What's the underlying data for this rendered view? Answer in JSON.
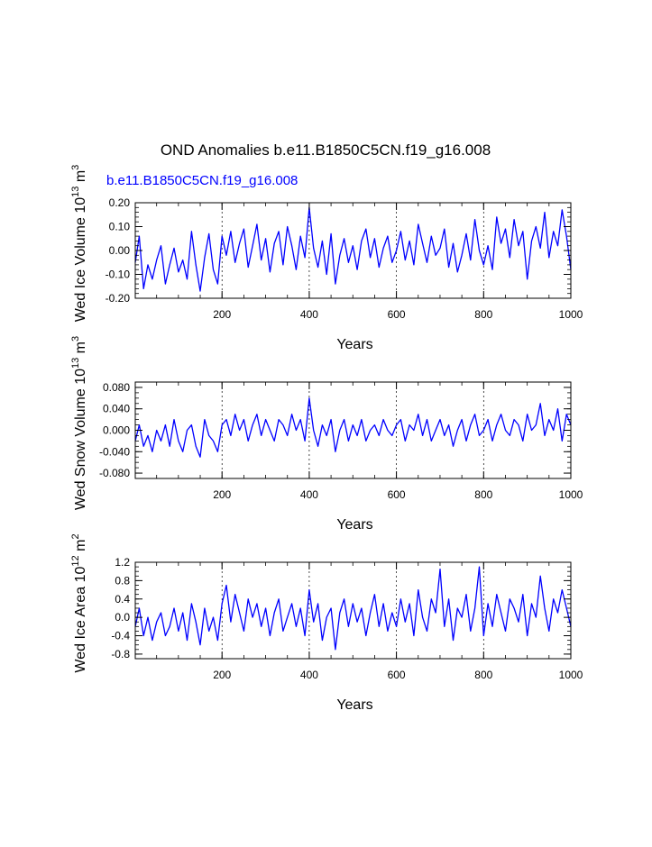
{
  "figure": {
    "title": "OND Anomalies b.e11.B1850C5CN.f19_g16.008",
    "run_label": "b.e11.B1850C5CN.f19_g16.008",
    "line_color": "#0000ff",
    "gridline_color": "#000000"
  },
  "chart_data": [
    {
      "type": "line",
      "title": "",
      "ylabel": {
        "text": "Wed Ice Volume 10",
        "exp": "13",
        "unit": " m",
        "unit_exp": "3"
      },
      "xlabel": "Years",
      "xlim": [
        1,
        1000
      ],
      "ylim": [
        -0.2,
        0.2
      ],
      "xticks": [
        200,
        400,
        600,
        800,
        1000
      ],
      "yticks": [
        -0.2,
        -0.1,
        0.0,
        0.1,
        0.2
      ],
      "ytick_labels": [
        "-0.20",
        "-0.10",
        "0.00",
        "0.10",
        "0.20"
      ],
      "yminor_step": 0.02,
      "vertical_gridlines_at": [
        200,
        400,
        600,
        800
      ],
      "series": [
        {
          "x": [
            1,
            10,
            20,
            30,
            40,
            50,
            60,
            70,
            80,
            90,
            100,
            110,
            120,
            130,
            140,
            150,
            160,
            170,
            180,
            190,
            200,
            210,
            220,
            230,
            240,
            250,
            260,
            270,
            280,
            290,
            300,
            310,
            320,
            330,
            340,
            350,
            360,
            370,
            380,
            390,
            400,
            410,
            420,
            430,
            440,
            450,
            460,
            470,
            480,
            490,
            500,
            510,
            520,
            530,
            540,
            550,
            560,
            570,
            580,
            590,
            600,
            610,
            620,
            630,
            640,
            650,
            660,
            670,
            680,
            690,
            700,
            710,
            720,
            730,
            740,
            750,
            760,
            770,
            780,
            790,
            800,
            810,
            820,
            830,
            840,
            850,
            860,
            870,
            880,
            890,
            900,
            910,
            920,
            930,
            940,
            950,
            960,
            970,
            980,
            990,
            1000
          ],
          "values": [
            -0.05,
            0.06,
            -0.16,
            -0.06,
            -0.12,
            -0.04,
            0.02,
            -0.14,
            -0.06,
            0.01,
            -0.09,
            -0.04,
            -0.12,
            0.08,
            -0.06,
            -0.17,
            -0.03,
            0.07,
            -0.08,
            -0.14,
            0.06,
            -0.02,
            0.08,
            -0.05,
            0.03,
            0.09,
            -0.07,
            0.02,
            0.11,
            -0.04,
            0.05,
            -0.09,
            0.03,
            0.08,
            -0.06,
            0.1,
            0.02,
            -0.08,
            0.06,
            -0.03,
            0.18,
            0.01,
            -0.07,
            0.04,
            -0.1,
            0.07,
            -0.14,
            -0.02,
            0.05,
            -0.05,
            0.02,
            -0.08,
            0.04,
            0.09,
            -0.03,
            0.05,
            -0.07,
            0.01,
            0.06,
            -0.05,
            0.0,
            0.08,
            -0.04,
            0.04,
            -0.06,
            0.11,
            0.03,
            -0.05,
            0.06,
            -0.02,
            0.01,
            0.09,
            -0.07,
            0.03,
            -0.09,
            -0.02,
            0.07,
            -0.04,
            0.13,
            0.0,
            -0.06,
            0.02,
            -0.08,
            0.14,
            0.03,
            0.09,
            -0.03,
            0.13,
            0.02,
            0.08,
            -0.12,
            0.04,
            0.1,
            0.01,
            0.16,
            -0.03,
            0.08,
            0.02,
            0.17,
            0.06,
            -0.08
          ]
        }
      ]
    },
    {
      "type": "line",
      "title": "",
      "ylabel": {
        "text": "Wed Snow Volume 10",
        "exp": "13",
        "unit": " m",
        "unit_exp": "3"
      },
      "xlabel": "Years",
      "xlim": [
        1,
        1000
      ],
      "ylim": [
        -0.09,
        0.09
      ],
      "xticks": [
        200,
        400,
        600,
        800,
        1000
      ],
      "yticks": [
        -0.08,
        -0.04,
        0.0,
        0.04,
        0.08
      ],
      "ytick_labels": [
        "-0.080",
        "-0.040",
        "0.000",
        "0.040",
        "0.080"
      ],
      "yminor_step": 0.01,
      "vertical_gridlines_at": [
        200,
        400,
        600,
        800
      ],
      "series": [
        {
          "x": [
            1,
            10,
            20,
            30,
            40,
            50,
            60,
            70,
            80,
            90,
            100,
            110,
            120,
            130,
            140,
            150,
            160,
            170,
            180,
            190,
            200,
            210,
            220,
            230,
            240,
            250,
            260,
            270,
            280,
            290,
            300,
            310,
            320,
            330,
            340,
            350,
            360,
            370,
            380,
            390,
            400,
            410,
            420,
            430,
            440,
            450,
            460,
            470,
            480,
            490,
            500,
            510,
            520,
            530,
            540,
            550,
            560,
            570,
            580,
            590,
            600,
            610,
            620,
            630,
            640,
            650,
            660,
            670,
            680,
            690,
            700,
            710,
            720,
            730,
            740,
            750,
            760,
            770,
            780,
            790,
            800,
            810,
            820,
            830,
            840,
            850,
            860,
            870,
            880,
            890,
            900,
            910,
            920,
            930,
            940,
            950,
            960,
            970,
            980,
            990,
            1000
          ],
          "values": [
            -0.02,
            0.01,
            -0.03,
            -0.01,
            -0.04,
            0.0,
            -0.02,
            0.01,
            -0.03,
            0.02,
            -0.02,
            -0.04,
            0.0,
            0.01,
            -0.03,
            -0.05,
            0.02,
            -0.01,
            -0.02,
            -0.04,
            0.01,
            0.02,
            -0.01,
            0.03,
            0.0,
            0.02,
            -0.02,
            0.01,
            0.03,
            -0.01,
            0.02,
            0.0,
            -0.02,
            0.02,
            0.01,
            -0.01,
            0.03,
            0.0,
            0.02,
            -0.02,
            0.06,
            0.0,
            -0.03,
            0.01,
            -0.01,
            0.02,
            -0.04,
            0.0,
            0.02,
            -0.02,
            0.01,
            -0.01,
            0.02,
            -0.02,
            0.0,
            0.01,
            -0.01,
            0.02,
            0.0,
            -0.01,
            0.01,
            0.02,
            -0.02,
            0.01,
            0.0,
            0.03,
            -0.01,
            0.02,
            -0.02,
            0.0,
            0.02,
            -0.01,
            0.01,
            -0.03,
            0.0,
            0.02,
            -0.02,
            0.01,
            0.03,
            -0.01,
            0.0,
            0.02,
            -0.02,
            0.01,
            0.03,
            0.0,
            -0.01,
            0.02,
            0.01,
            -0.02,
            0.03,
            0.0,
            0.01,
            0.05,
            -0.01,
            0.02,
            0.0,
            0.04,
            -0.02,
            0.03,
            0.01
          ]
        }
      ]
    },
    {
      "type": "line",
      "title": "",
      "ylabel": {
        "text": "Wed Ice Area 10",
        "exp": "12",
        "unit": " m",
        "unit_exp": "2"
      },
      "xlabel": "Years",
      "xlim": [
        1,
        1000
      ],
      "ylim": [
        -0.9,
        1.2
      ],
      "xticks": [
        200,
        400,
        600,
        800,
        1000
      ],
      "yticks": [
        -0.8,
        -0.4,
        0.0,
        0.4,
        0.8,
        1.2
      ],
      "ytick_labels": [
        "-0.8",
        "-0.4",
        "0.0",
        "0.4",
        "0.8",
        "1.2"
      ],
      "yminor_step": 0.1,
      "vertical_gridlines_at": [
        200,
        400,
        600,
        800
      ],
      "series": [
        {
          "x": [
            1,
            10,
            20,
            30,
            40,
            50,
            60,
            70,
            80,
            90,
            100,
            110,
            120,
            130,
            140,
            150,
            160,
            170,
            180,
            190,
            200,
            210,
            220,
            230,
            240,
            250,
            260,
            270,
            280,
            290,
            300,
            310,
            320,
            330,
            340,
            350,
            360,
            370,
            380,
            390,
            400,
            410,
            420,
            430,
            440,
            450,
            460,
            470,
            480,
            490,
            500,
            510,
            520,
            530,
            540,
            550,
            560,
            570,
            580,
            590,
            600,
            610,
            620,
            630,
            640,
            650,
            660,
            670,
            680,
            690,
            700,
            710,
            720,
            730,
            740,
            750,
            760,
            770,
            780,
            790,
            800,
            810,
            820,
            830,
            840,
            850,
            860,
            870,
            880,
            890,
            900,
            910,
            920,
            930,
            940,
            950,
            960,
            970,
            980,
            990,
            1000
          ],
          "values": [
            -0.2,
            0.2,
            -0.4,
            0.0,
            -0.5,
            -0.1,
            0.1,
            -0.4,
            -0.2,
            0.2,
            -0.3,
            0.1,
            -0.5,
            0.3,
            -0.1,
            -0.6,
            0.2,
            -0.3,
            0.0,
            -0.5,
            0.3,
            0.7,
            -0.1,
            0.5,
            0.1,
            -0.3,
            0.4,
            0.0,
            0.3,
            -0.2,
            0.2,
            -0.4,
            0.1,
            0.4,
            -0.3,
            0.0,
            0.3,
            -0.2,
            0.2,
            -0.4,
            0.6,
            -0.1,
            0.3,
            -0.5,
            0.0,
            0.2,
            -0.7,
            0.1,
            0.4,
            -0.2,
            0.3,
            -0.1,
            0.2,
            -0.4,
            0.1,
            0.5,
            -0.2,
            0.3,
            -0.3,
            0.1,
            -0.2,
            0.4,
            -0.1,
            0.3,
            -0.4,
            0.6,
            0.0,
            -0.3,
            0.4,
            0.1,
            1.05,
            -0.2,
            0.4,
            -0.5,
            0.2,
            0.0,
            0.5,
            -0.3,
            0.2,
            1.1,
            -0.4,
            0.3,
            -0.2,
            0.5,
            0.1,
            -0.3,
            0.4,
            0.2,
            -0.1,
            0.5,
            -0.4,
            0.3,
            0.0,
            0.9,
            0.2,
            -0.3,
            0.4,
            0.1,
            0.6,
            0.2,
            -0.2
          ]
        }
      ]
    }
  ]
}
